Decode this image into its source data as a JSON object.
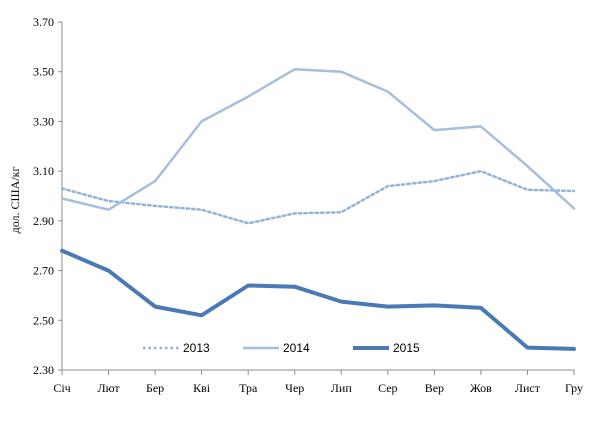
{
  "chart_data": {
    "type": "line",
    "categories": [
      "Січ",
      "Лют",
      "Бер",
      "Кві",
      "Тра",
      "Чер",
      "Лип",
      "Сер",
      "Вер",
      "Жов",
      "Лист",
      "Гру"
    ],
    "ylabel": "дол. США/кг",
    "xlabel": "",
    "ylim": [
      2.3,
      3.7
    ],
    "yticks": [
      "2.30",
      "2.50",
      "2.70",
      "2.90",
      "3.10",
      "3.30",
      "3.50",
      "3.70"
    ],
    "grid": false,
    "legend_position": "bottom-center",
    "series": [
      {
        "name": "2013",
        "color": "#95b3d7",
        "style": "dotted",
        "values": [
          3.03,
          2.98,
          2.96,
          2.945,
          2.89,
          2.93,
          2.935,
          3.04,
          3.06,
          3.1,
          3.025,
          3.02
        ]
      },
      {
        "name": "2014",
        "color": "#a7bfdc",
        "style": "solid",
        "values": [
          2.99,
          2.945,
          3.06,
          3.3,
          3.4,
          3.51,
          3.5,
          3.42,
          3.265,
          3.28,
          3.12,
          2.95
        ]
      },
      {
        "name": "2015",
        "color": "#4a7ab5",
        "style": "solid-thick",
        "values": [
          2.78,
          2.7,
          2.555,
          2.52,
          2.64,
          2.635,
          2.575,
          2.555,
          2.56,
          2.55,
          2.39,
          2.385
        ]
      }
    ]
  }
}
